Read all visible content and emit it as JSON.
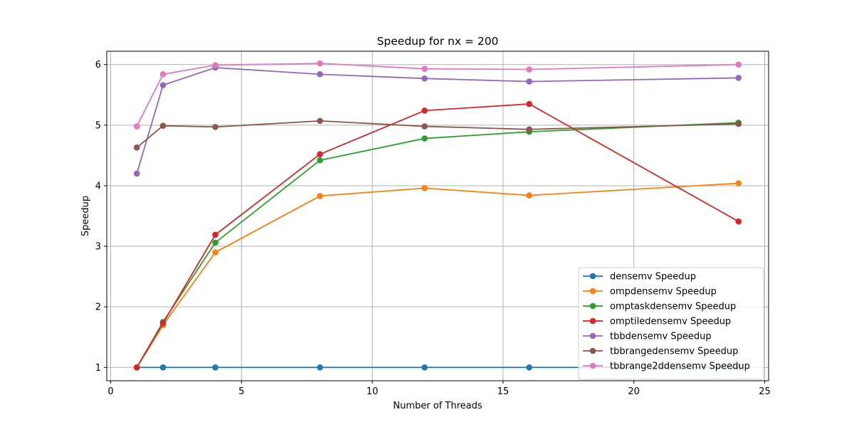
{
  "chart_data": {
    "type": "line",
    "title": "Speedup for nx = 200",
    "xlabel": "Number of Threads",
    "ylabel": "Speedup",
    "xlim": [
      -0.15,
      25.15
    ],
    "ylim": [
      0.78,
      6.22
    ],
    "xticks": [
      0,
      5,
      10,
      15,
      20,
      25
    ],
    "yticks": [
      1,
      2,
      3,
      4,
      5,
      6
    ],
    "grid": true,
    "legend_position": "lower right",
    "x": [
      1,
      2,
      4,
      8,
      12,
      16,
      24
    ],
    "series": [
      {
        "name": "densemv Speedup",
        "color": "#1f77b4",
        "values": [
          1.0,
          1.0,
          1.0,
          1.0,
          1.0,
          1.0,
          1.0
        ]
      },
      {
        "name": "ompdensemv Speedup",
        "color": "#ff7f0e",
        "values": [
          1.0,
          1.7,
          2.9,
          3.83,
          3.96,
          3.84,
          4.04
        ]
      },
      {
        "name": "omptaskdensemv Speedup",
        "color": "#2ca02c",
        "values": [
          1.0,
          1.75,
          3.06,
          4.42,
          4.78,
          4.89,
          5.04
        ]
      },
      {
        "name": "omptiledensemv Speedup",
        "color": "#d62728",
        "values": [
          1.0,
          1.73,
          3.19,
          4.52,
          5.24,
          5.35,
          3.41
        ]
      },
      {
        "name": "tbbdensemv Speedup",
        "color": "#9467bd",
        "values": [
          4.2,
          5.66,
          5.95,
          5.84,
          5.77,
          5.72,
          5.78
        ]
      },
      {
        "name": "tbbrangedensemv Speedup",
        "color": "#8c564b",
        "values": [
          4.63,
          4.99,
          4.97,
          5.07,
          4.98,
          4.93,
          5.02
        ]
      },
      {
        "name": "tbbrange2ddensemv Speedup",
        "color": "#e377c2",
        "values": [
          4.98,
          5.84,
          5.99,
          6.02,
          5.93,
          5.92,
          6.0
        ]
      }
    ]
  }
}
